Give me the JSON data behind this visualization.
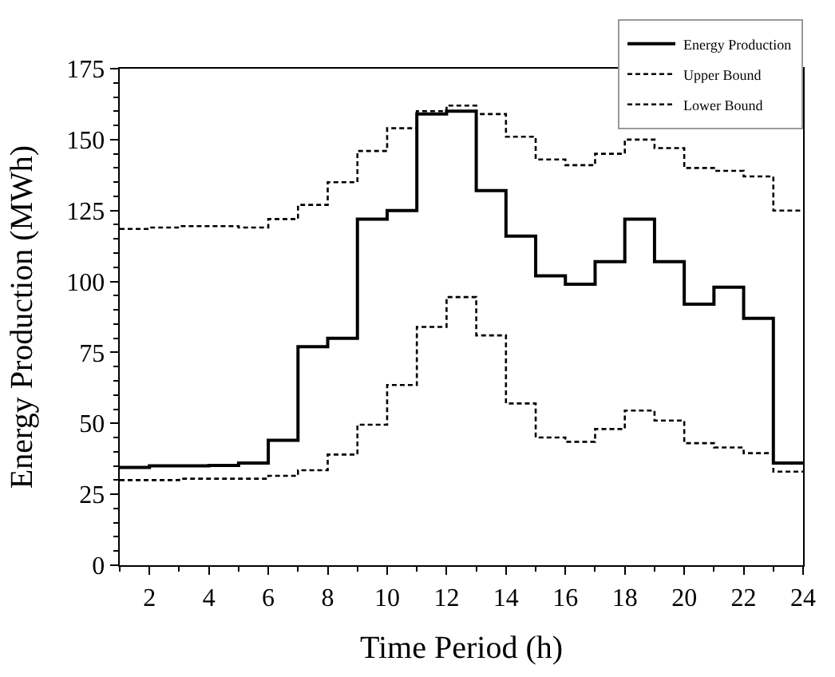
{
  "chart_data": {
    "type": "step",
    "xlabel": "Time Period (h)",
    "ylabel": "Energy Production (MWh)",
    "x": [
      1,
      2,
      3,
      4,
      5,
      6,
      7,
      8,
      9,
      10,
      11,
      12,
      13,
      14,
      15,
      16,
      17,
      18,
      19,
      20,
      21,
      22,
      23,
      24
    ],
    "series": [
      {
        "name": "Energy Production",
        "color": "#000000",
        "line_style": "solid",
        "values": [
          34.5,
          35,
          35,
          35.2,
          36,
          44,
          77,
          80,
          122,
          125,
          159,
          160,
          132,
          116,
          102,
          99,
          107,
          122,
          107,
          92,
          98,
          87,
          36,
          36
        ]
      },
      {
        "name": "Upper Bound",
        "color": "#000000",
        "line_style": "dashed",
        "values": [
          118.5,
          119,
          119.5,
          119.5,
          119,
          122,
          127,
          135,
          146,
          154,
          160,
          162,
          159,
          151,
          143,
          141,
          145,
          150,
          147,
          140,
          139,
          137,
          125,
          125
        ]
      },
      {
        "name": "Lower Bound",
        "color": "#000000",
        "line_style": "dashed",
        "values": [
          30,
          30,
          30.5,
          30.5,
          30.5,
          31.5,
          33.5,
          39,
          49.5,
          63.5,
          84,
          94.5,
          81,
          57,
          45,
          43.5,
          48,
          54.5,
          51,
          43,
          41.5,
          39.5,
          33,
          33
        ]
      }
    ],
    "xlim": [
      1,
      24
    ],
    "xticks": [
      2,
      4,
      6,
      8,
      10,
      12,
      14,
      16,
      18,
      20,
      22,
      24
    ],
    "ylim": [
      0,
      175
    ],
    "yticks": [
      0,
      25,
      50,
      75,
      100,
      125,
      150,
      175
    ],
    "legend": "top right",
    "marker": "none"
  }
}
